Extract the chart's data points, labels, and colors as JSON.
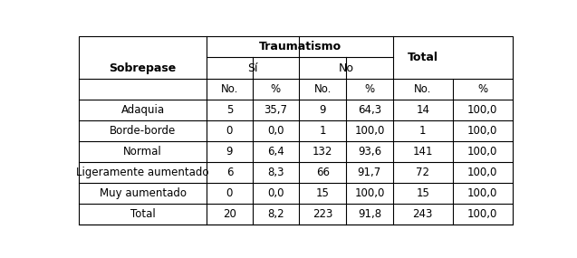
{
  "title_col1": "Sobrepase",
  "header_group": "Traumatismo",
  "header_sub1": "Sí",
  "header_sub2": "No",
  "header_total": "Total",
  "col_headers": [
    "No.",
    "%",
    "No.",
    "%",
    "No.",
    "%"
  ],
  "rows": [
    [
      "Adaquia",
      "5",
      "35,7",
      "9",
      "64,3",
      "14",
      "100,0"
    ],
    [
      "Borde-borde",
      "0",
      "0,0",
      "1",
      "100,0",
      "1",
      "100,0"
    ],
    [
      "Normal",
      "9",
      "6,4",
      "132",
      "93,6",
      "141",
      "100,0"
    ],
    [
      "Ligeramente aumentado",
      "6",
      "8,3",
      "66",
      "91,7",
      "72",
      "100,0"
    ],
    [
      "Muy aumentado",
      "0",
      "0,0",
      "15",
      "100,0",
      "15",
      "100,0"
    ],
    [
      "Total",
      "20",
      "8,2",
      "223",
      "91,8",
      "243",
      "100,0"
    ]
  ],
  "background_color": "#ffffff",
  "line_color": "#000000",
  "font_size": 8.5,
  "header_font_size": 9,
  "bold_font_size": 9
}
